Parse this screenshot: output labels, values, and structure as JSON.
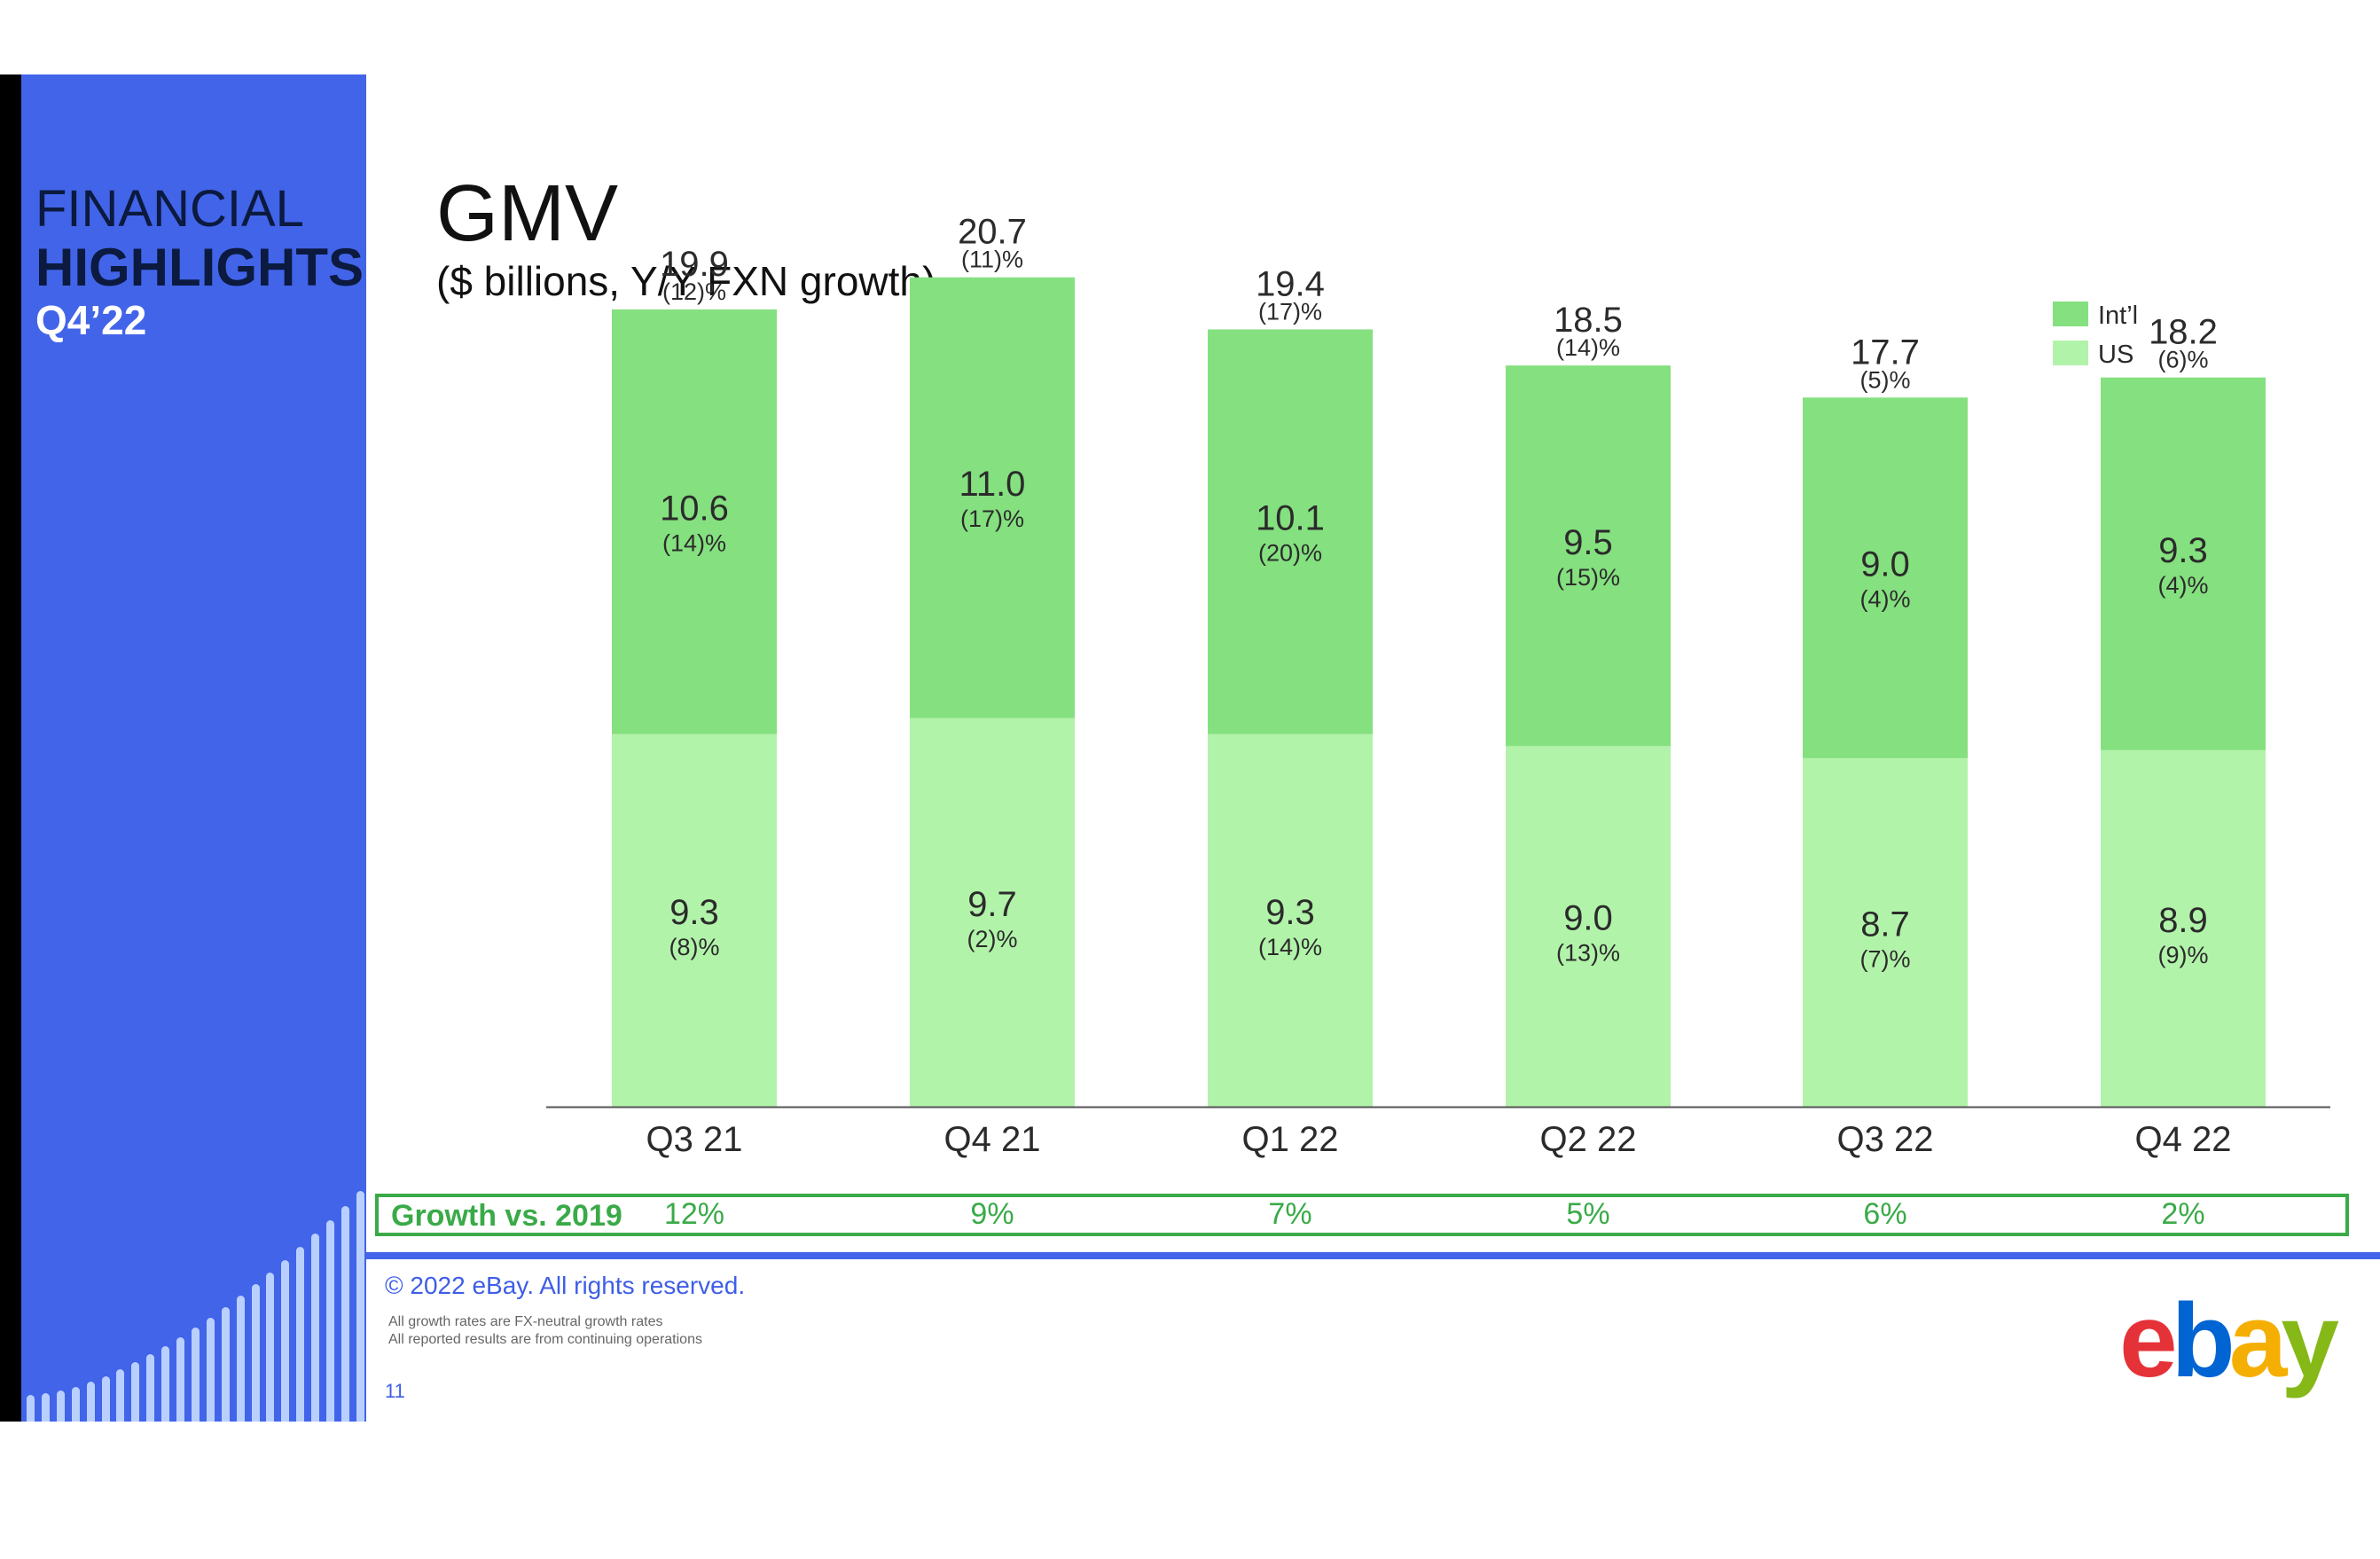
{
  "sidebar": {
    "line1": "FINANCIAL",
    "line2": "HIGHLIGHTS",
    "line3": "Q4’22"
  },
  "slide": {
    "title": "GMV",
    "subtitle": "($ billions, Y/Y FXN growth)",
    "copyright": "© 2022 eBay. All rights reserved.",
    "footnotes": [
      "All growth rates are FX-neutral growth rates",
      "All reported results are from continuing operations"
    ],
    "page_number": "11",
    "logo": {
      "e": "e",
      "b": "b",
      "a": "a",
      "y": "y"
    }
  },
  "colors": {
    "intl": "#85e07f",
    "us": "#b2f3aa",
    "sidebar": "#4264e9",
    "growth": "#3aaa48"
  },
  "chart_data": {
    "type": "bar",
    "stacked": true,
    "categories": [
      "Q3 21",
      "Q4 21",
      "Q1 22",
      "Q2 22",
      "Q3 22",
      "Q4 22"
    ],
    "series": [
      {
        "name": "US",
        "values": [
          9.3,
          9.7,
          9.3,
          9.0,
          8.7,
          8.9
        ],
        "labels": [
          "9.3",
          "9.7",
          "9.3",
          "9.0",
          "8.7",
          "8.9"
        ],
        "growth": [
          "(8)%",
          "(2)%",
          "(14)%",
          "(13)%",
          "(7)%",
          "(9)%"
        ]
      },
      {
        "name": "Int’l",
        "values": [
          10.6,
          11.0,
          10.1,
          9.5,
          9.0,
          9.3
        ],
        "labels": [
          "10.6",
          "11.0",
          "10.1",
          "9.5",
          "9.0",
          "9.3"
        ],
        "growth": [
          "(14)%",
          "(17)%",
          "(20)%",
          "(15)%",
          "(4)%",
          "(4)%"
        ]
      }
    ],
    "totals": {
      "values": [
        19.9,
        20.7,
        19.4,
        18.5,
        17.7,
        18.2
      ],
      "labels": [
        "19.9",
        "20.7",
        "19.4",
        "18.5",
        "17.7",
        "18.2"
      ],
      "growth": [
        "(12)%",
        "(11)%",
        "(17)%",
        "(14)%",
        "(5)%",
        "(6)%"
      ]
    },
    "legend": {
      "entries": [
        "Int’l",
        "US"
      ],
      "position": "top-right"
    },
    "growth_vs_2019": {
      "label": "Growth vs. 2019",
      "values": [
        "12%",
        "9%",
        "7%",
        "5%",
        "6%",
        "2%"
      ]
    },
    "ylim": [
      0,
      22
    ]
  }
}
